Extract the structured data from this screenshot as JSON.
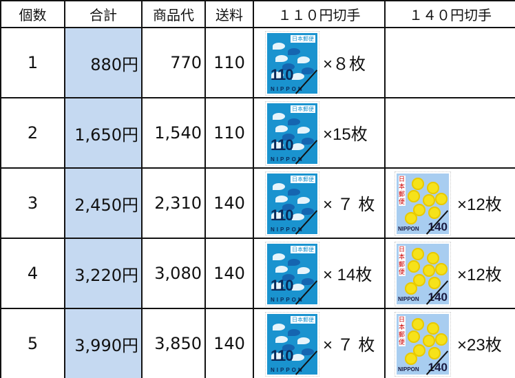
{
  "headers": [
    "個数",
    "合計",
    "商品代",
    "送料",
    "１１０円切手",
    "１４０円切手"
  ],
  "stamps": {
    "s110": {
      "value": "110",
      "country": "NIPPON",
      "issuer": "日本郵便",
      "color": "#1a93cf"
    },
    "s140": {
      "value": "140",
      "country": "NIPPON",
      "issuer": "日本郵便",
      "color": "#a8cdf0"
    }
  },
  "rows": [
    {
      "qty": "1",
      "total": "880円",
      "goods": "770",
      "shipping": "110",
      "count110": "×８枚",
      "count140": ""
    },
    {
      "qty": "2",
      "total": "1,650円",
      "goods": "1,540",
      "shipping": "110",
      "count110": "×15枚",
      "count140": ""
    },
    {
      "qty": "3",
      "total": "2,450円",
      "goods": "2,310",
      "shipping": "140",
      "count110": "× ７ 枚",
      "count140": "×12枚"
    },
    {
      "qty": "4",
      "total": "3,220円",
      "goods": "3,080",
      "shipping": "140",
      "count110": "× 14枚",
      "count140": "×12枚"
    },
    {
      "qty": "5",
      "total": "3,990円",
      "goods": "3,850",
      "shipping": "140",
      "count110": "× ７ 枚",
      "count140": "×23枚"
    }
  ],
  "colors": {
    "total_column": "#c5d9f1"
  }
}
